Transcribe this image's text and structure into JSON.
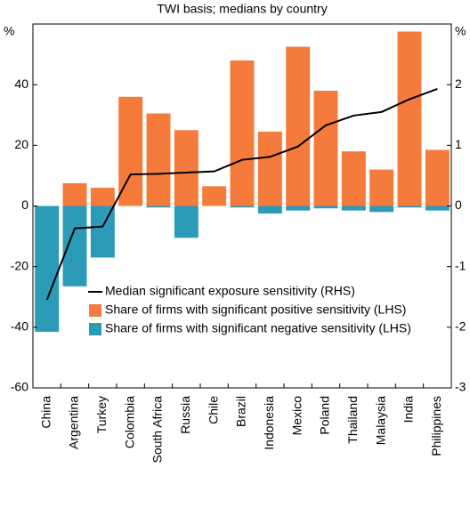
{
  "chart_data": {
    "type": "bar_line",
    "title": "TWI basis; medians by country",
    "y_unit": "%",
    "y2_unit": "%",
    "categories": [
      "China",
      "Argentina",
      "Turkey",
      "Colombia",
      "South Africa",
      "Russia",
      "Chile",
      "Brazil",
      "Indonesia",
      "Mexico",
      "Poland",
      "Thailand",
      "Malaysia",
      "India",
      "Philippines"
    ],
    "series": [
      {
        "name": "Median significant exposure sensitivity (RHS)",
        "type": "line",
        "axis": "y2",
        "color": "#000000",
        "values": [
          -1.55,
          -0.37,
          -0.34,
          0.52,
          0.53,
          0.55,
          0.57,
          0.76,
          0.81,
          0.98,
          1.33,
          1.49,
          1.55,
          1.76,
          1.93
        ]
      },
      {
        "name": "Share of firms with significant positive sensitivity (LHS)",
        "type": "bar",
        "color": "#f47b3b",
        "values": [
          0,
          7.5,
          6,
          36,
          30.5,
          25,
          6.5,
          48,
          24.5,
          52.5,
          38,
          18,
          12,
          57.5,
          18.5
        ]
      },
      {
        "name": "Share of firms with significant negative sensitivity (LHS)",
        "type": "bar",
        "color": "#2b9bb8",
        "values": [
          -41.5,
          -26.5,
          -17,
          0,
          -0.5,
          -10.5,
          0,
          -0.5,
          -2.5,
          -1.5,
          -0.8,
          -1.5,
          -2,
          -0.5,
          -1.5
        ]
      }
    ],
    "ylim": [
      -60,
      60
    ],
    "yticks": [
      -60,
      -40,
      -20,
      0,
      20,
      40
    ],
    "y2lim": [
      -3,
      3
    ],
    "y2ticks": [
      -3,
      -2,
      -1,
      0,
      1,
      2
    ]
  }
}
